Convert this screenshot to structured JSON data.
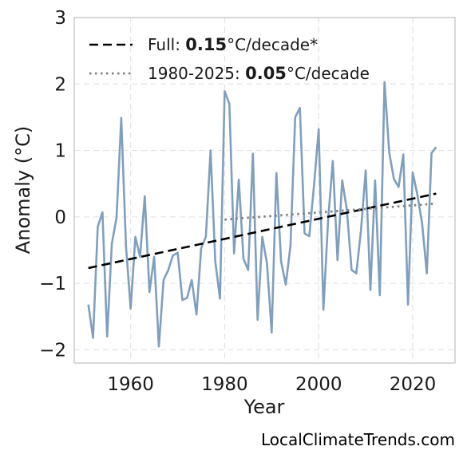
{
  "chart_data": {
    "type": "line",
    "xlabel": "Year",
    "ylabel": "Anomaly (°C)",
    "xlim": [
      1948,
      2029
    ],
    "ylim": [
      -2.2,
      3.0
    ],
    "x_ticks": [
      1960,
      1980,
      2000,
      2020
    ],
    "y_ticks": [
      -2,
      -1,
      0,
      1,
      2,
      3
    ],
    "y_tick_labels": [
      "−2",
      "−1",
      "0",
      "1",
      "2",
      "3"
    ],
    "grid": true,
    "legend_placement": "top-left",
    "series": [
      {
        "color": "#7f9fbf",
        "x": [
          1951,
          1952,
          1953,
          1954,
          1955,
          1956,
          1957,
          1958,
          1959,
          1960,
          1961,
          1962,
          1963,
          1964,
          1965,
          1966,
          1967,
          1968,
          1969,
          1970,
          1971,
          1972,
          1973,
          1974,
          1975,
          1976,
          1977,
          1978,
          1979,
          1980,
          1981,
          1982,
          1983,
          1984,
          1985,
          1986,
          1987,
          1988,
          1989,
          1990,
          1991,
          1992,
          1993,
          1994,
          1995,
          1996,
          1997,
          1998,
          1999,
          2000,
          2001,
          2002,
          2003,
          2004,
          2005,
          2006,
          2007,
          2008,
          2009,
          2010,
          2011,
          2012,
          2013,
          2014,
          2015,
          2016,
          2017,
          2018,
          2019,
          2020,
          2021,
          2022,
          2023,
          2024,
          2025
        ],
        "y": [
          -1.32,
          -1.82,
          -0.15,
          0.07,
          -1.8,
          -0.4,
          -0.01,
          1.49,
          -0.43,
          -1.38,
          -0.3,
          -0.6,
          0.31,
          -1.13,
          -0.6,
          -1.95,
          -0.95,
          -0.8,
          -0.58,
          -0.54,
          -1.25,
          -1.22,
          -0.95,
          -1.47,
          -0.47,
          -0.3,
          1.0,
          -0.67,
          -1.23,
          1.89,
          1.7,
          -0.55,
          0.56,
          -0.63,
          -0.8,
          0.95,
          -1.55,
          -0.3,
          -0.7,
          -1.74,
          0.66,
          -0.67,
          -1.02,
          -0.43,
          1.5,
          1.64,
          -0.25,
          -0.29,
          0.47,
          1.32,
          -1.4,
          -0.05,
          0.84,
          -0.65,
          0.55,
          0.1,
          -0.8,
          -0.85,
          -0.2,
          0.7,
          -1.1,
          0.55,
          -1.18,
          2.03,
          0.97,
          0.57,
          0.45,
          0.94,
          -1.32,
          0.67,
          0.33,
          -0.1,
          -0.85,
          0.96,
          1.05
        ]
      },
      {
        "name": "Full: 0.15°C/decade*",
        "style": "dashed",
        "color": "#000000",
        "x": [
          1951,
          2025
        ],
        "y": [
          -0.77,
          0.35
        ]
      },
      {
        "name": "1980-2025: 0.05°C/decade",
        "style": "dotted",
        "color": "#808080",
        "x": [
          1980,
          2025
        ],
        "y": [
          -0.04,
          0.2
        ]
      }
    ],
    "legend": [
      {
        "prefix": "Full: ",
        "value": "0.15",
        "suffix": "°C/decade*"
      },
      {
        "prefix": "1980-2025: ",
        "value": "0.05",
        "suffix": "°C/decade"
      }
    ]
  },
  "credit": "LocalClimateTrends.com"
}
